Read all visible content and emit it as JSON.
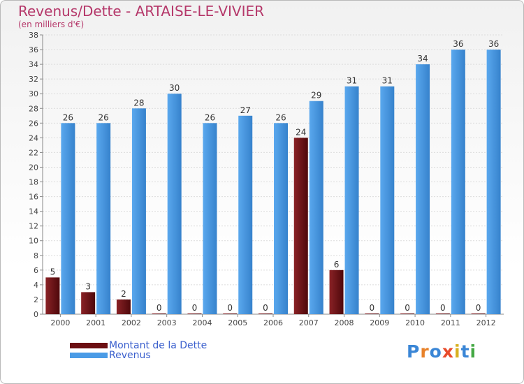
{
  "header": {
    "title": "Revenus/Dette - ARTAISE-LE-VIVIER",
    "subtitle": "(en milliers d'€)"
  },
  "legend": {
    "items": [
      {
        "label": "Montant de la Dette",
        "color": "#6b0f12"
      },
      {
        "label": "Revenus",
        "color": "#4a9be6"
      }
    ]
  },
  "logo": {
    "text": "Proxiti",
    "colors": [
      "#3a86d6",
      "#e8822a",
      "#3a86d6",
      "#e84a2a",
      "#d8b020",
      "#3a86d6",
      "#44a844"
    ]
  },
  "chart_data": {
    "type": "bar",
    "title": "Revenus/Dette - ARTAISE-LE-VIVIER",
    "subtitle": "(en milliers d'€)",
    "categories": [
      "2000",
      "2001",
      "2002",
      "2003",
      "2004",
      "2005",
      "2006",
      "2007",
      "2008",
      "2009",
      "2010",
      "2011",
      "2012"
    ],
    "series": [
      {
        "name": "Montant de la Dette",
        "color": "#6b0f12",
        "values": [
          5,
          3,
          2,
          0,
          0,
          0,
          0,
          24,
          6,
          0,
          0,
          0,
          0
        ]
      },
      {
        "name": "Revenus",
        "color": "#4a9be6",
        "values": [
          26,
          26,
          28,
          30,
          26,
          27,
          26,
          29,
          31,
          31,
          34,
          36,
          36
        ]
      }
    ],
    "ylim": [
      0,
      38
    ],
    "yticks": [
      0,
      2,
      4,
      6,
      8,
      10,
      12,
      14,
      16,
      18,
      20,
      22,
      24,
      26,
      28,
      30,
      32,
      34,
      36,
      38
    ],
    "grid": true,
    "legend_position": "bottom-left"
  }
}
